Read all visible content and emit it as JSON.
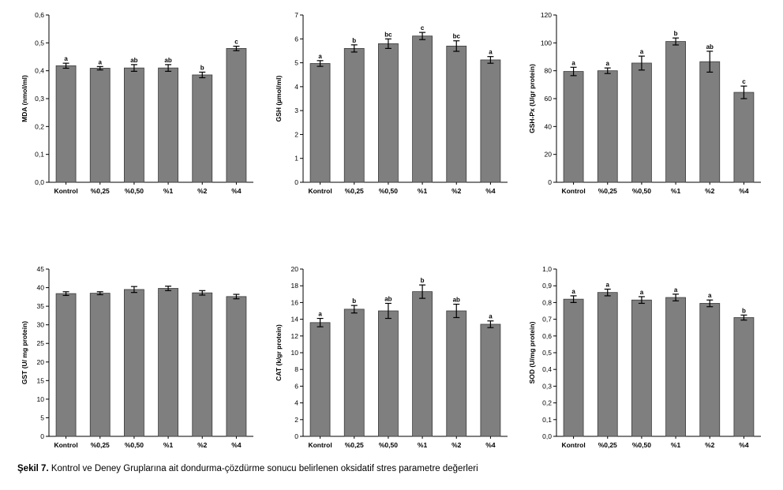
{
  "caption": {
    "label": "Şekil 7.",
    "text": "Kontrol ve Deney Gruplarına ait dondurma-çözdürme sonucu belirlenen oksidatif stres parametre değerleri"
  },
  "colors": {
    "bar": "#7f7f7f",
    "bar_stroke": "#3a3a3a",
    "axis": "#000000"
  },
  "chart_data": [
    {
      "type": "bar",
      "ylabel": "MDA (nmol/ml)",
      "categories": [
        "Kontrol",
        "%0,25",
        "%0,50",
        "%1",
        "%2",
        "%4"
      ],
      "values": [
        0.418,
        0.409,
        0.41,
        0.41,
        0.385,
        0.48
      ],
      "errors": [
        0.009,
        0.006,
        0.012,
        0.012,
        0.01,
        0.008
      ],
      "letters": [
        "a",
        "a",
        "ab",
        "ab",
        "b",
        "c"
      ],
      "ylim": [
        0,
        0.6
      ],
      "yticks": [
        0,
        0.1,
        0.2,
        0.3,
        0.4,
        0.5,
        0.6
      ],
      "yticklabels": [
        "0,0",
        "0,1",
        "0,2",
        "0,3",
        "0,4",
        "0,5",
        "0,6"
      ]
    },
    {
      "type": "bar",
      "ylabel": "GSH (µmol/ml)",
      "categories": [
        "Kontrol",
        "%0,25",
        "%0,50",
        "%1",
        "%2",
        "%4"
      ],
      "values": [
        4.97,
        5.6,
        5.8,
        6.12,
        5.7,
        5.12
      ],
      "errors": [
        0.12,
        0.15,
        0.2,
        0.15,
        0.22,
        0.14
      ],
      "letters": [
        "a",
        "b",
        "bc",
        "c",
        "bc",
        "a"
      ],
      "ylim": [
        0,
        7
      ],
      "yticks": [
        0,
        1,
        2,
        3,
        4,
        5,
        6,
        7
      ],
      "yticklabels": [
        "0",
        "1",
        "2",
        "3",
        "4",
        "5",
        "6",
        "7"
      ]
    },
    {
      "type": "bar",
      "ylabel": "GSH-Px (U/gr protein)",
      "categories": [
        "Kontrol",
        "%0,25",
        "%0,50",
        "%1",
        "%2",
        "%4"
      ],
      "values": [
        79.5,
        80.0,
        85.5,
        101.0,
        86.5,
        64.5
      ],
      "errors": [
        3.0,
        2.0,
        5.0,
        2.5,
        7.5,
        4.5
      ],
      "letters": [
        "a",
        "a",
        "a",
        "b",
        "ab",
        "c"
      ],
      "ylim": [
        0,
        120
      ],
      "yticks": [
        0,
        20,
        40,
        60,
        80,
        100,
        120
      ],
      "yticklabels": [
        "0",
        "20",
        "40",
        "60",
        "80",
        "100",
        "120"
      ]
    },
    {
      "type": "bar",
      "ylabel": "GST (U/ mg protein)",
      "categories": [
        "Kontrol",
        "%0,25",
        "%0,50",
        "%1",
        "%2",
        "%4"
      ],
      "values": [
        38.4,
        38.5,
        39.5,
        39.8,
        38.6,
        37.6
      ],
      "errors": [
        0.5,
        0.4,
        0.8,
        0.6,
        0.6,
        0.6
      ],
      "letters": [
        "",
        "",
        "",
        "",
        "",
        ""
      ],
      "ylim": [
        0,
        45
      ],
      "yticks": [
        0,
        5,
        10,
        15,
        20,
        25,
        30,
        35,
        40,
        45
      ],
      "yticklabels": [
        "0",
        "5",
        "10",
        "15",
        "20",
        "25",
        "30",
        "35",
        "40",
        "45"
      ]
    },
    {
      "type": "bar",
      "ylabel": "CAT (k/gr protein)",
      "categories": [
        "Kontrol",
        "%0,25",
        "%0,50",
        "%1",
        "%2",
        "%4"
      ],
      "values": [
        13.6,
        15.2,
        15.0,
        17.3,
        15.0,
        13.4
      ],
      "errors": [
        0.5,
        0.45,
        0.9,
        0.8,
        0.8,
        0.4
      ],
      "letters": [
        "a",
        "b",
        "ab",
        "b",
        "ab",
        "a"
      ],
      "ylim": [
        0,
        20
      ],
      "yticks": [
        0,
        2,
        4,
        6,
        8,
        10,
        12,
        14,
        16,
        18,
        20
      ],
      "yticklabels": [
        "0",
        "2",
        "4",
        "6",
        "8",
        "10",
        "12",
        "14",
        "16",
        "18",
        "20"
      ]
    },
    {
      "type": "bar",
      "ylabel": "SOD (U/mg protein)",
      "categories": [
        "Kontrol",
        "%0,25",
        "%0,50",
        "%1",
        "%2",
        "%4"
      ],
      "values": [
        0.82,
        0.86,
        0.815,
        0.83,
        0.795,
        0.71
      ],
      "errors": [
        0.02,
        0.02,
        0.02,
        0.02,
        0.02,
        0.015
      ],
      "letters": [
        "a",
        "a",
        "a",
        "a",
        "a",
        "b"
      ],
      "ylim": [
        0,
        1.0
      ],
      "yticks": [
        0,
        0.1,
        0.2,
        0.3,
        0.4,
        0.5,
        0.6,
        0.7,
        0.8,
        0.9,
        1.0
      ],
      "yticklabels": [
        "0,0",
        "0,1",
        "0,2",
        "0,3",
        "0,4",
        "0,5",
        "0,6",
        "0,7",
        "0,8",
        "0,9",
        "1,0"
      ]
    }
  ]
}
